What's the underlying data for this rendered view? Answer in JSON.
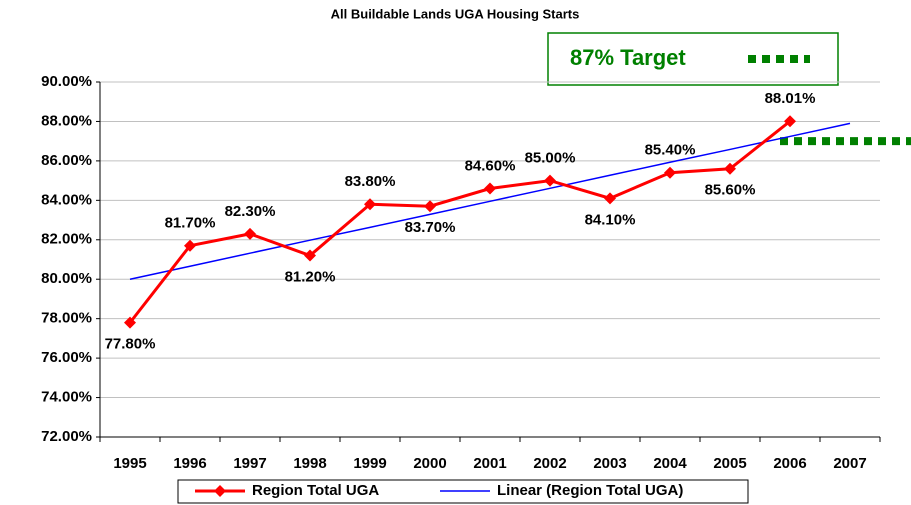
{
  "chart_data": {
    "type": "line",
    "title": "All Buildable Lands UGA Housing Starts",
    "categories": [
      "1995",
      "1996",
      "1997",
      "1998",
      "1999",
      "2000",
      "2001",
      "2002",
      "2003",
      "2004",
      "2005",
      "2006",
      "2007"
    ],
    "series": [
      {
        "name": "Region Total UGA",
        "color": "#ff0000",
        "marker": "diamond",
        "values": [
          77.8,
          81.7,
          82.3,
          81.2,
          83.8,
          83.7,
          84.6,
          85.0,
          84.1,
          85.4,
          85.6,
          88.01,
          null
        ],
        "value_labels": [
          "77.80%",
          "81.70%",
          "82.30%",
          "81.20%",
          "83.80%",
          "83.70%",
          "84.60%",
          "85.00%",
          "84.10%",
          "85.40%",
          "85.60%",
          "88.01%",
          null
        ]
      },
      {
        "name": "Linear (Region Total UGA)",
        "color": "#0000ff",
        "values": [
          80.0,
          80.66,
          81.32,
          81.98,
          82.63,
          83.29,
          83.95,
          84.61,
          85.27,
          85.93,
          86.58,
          87.24,
          87.9
        ]
      }
    ],
    "target": {
      "label": "87% Target",
      "value": 87,
      "color": "#008000"
    },
    "ylim": [
      72,
      90
    ],
    "yticks": [
      {
        "value": 72,
        "label": "72.00%"
      },
      {
        "value": 74,
        "label": "74.00%"
      },
      {
        "value": 76,
        "label": "76.00%"
      },
      {
        "value": 78,
        "label": "78.00%"
      },
      {
        "value": 80,
        "label": "80.00%"
      },
      {
        "value": 82,
        "label": "82.00%"
      },
      {
        "value": 84,
        "label": "84.00%"
      },
      {
        "value": 86,
        "label": "86.00%"
      },
      {
        "value": 88,
        "label": "88.00%"
      },
      {
        "value": 90,
        "label": "90.00%"
      }
    ],
    "grid": true,
    "legend": "bottom"
  }
}
